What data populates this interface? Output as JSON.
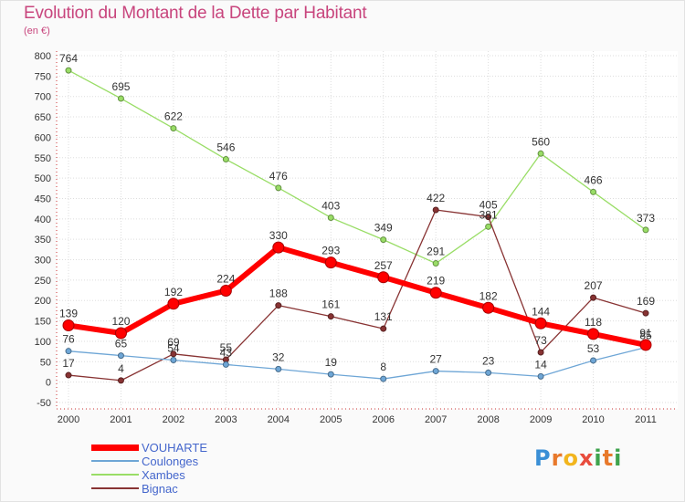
{
  "title": "Evolution du Montant de la Dette par Habitant",
  "unit_label": "(en €)",
  "brand": {
    "letters": [
      "P",
      "r",
      "o",
      "x",
      "i",
      "t",
      "i"
    ],
    "colors": [
      "#3a8fd6",
      "#e8792b",
      "#f2b51d",
      "#e84c3d",
      "#3fa34d",
      "#e8792b",
      "#3fa34d"
    ]
  },
  "chart_data": {
    "type": "line",
    "x": [
      "2000",
      "2001",
      "2002",
      "2003",
      "2004",
      "2005",
      "2006",
      "2007",
      "2008",
      "2009",
      "2010",
      "2011"
    ],
    "ylim": [
      -50,
      800
    ],
    "yticks": [
      -50,
      0,
      50,
      100,
      150,
      200,
      250,
      300,
      350,
      400,
      450,
      500,
      550,
      600,
      650,
      700,
      750,
      800
    ],
    "grid": true,
    "legend_position": "bottom-left",
    "series": [
      {
        "name": "VOUHARTE",
        "color": "#ff0000",
        "values": [
          139,
          120,
          192,
          224,
          330,
          293,
          257,
          219,
          182,
          144,
          118,
          91
        ]
      },
      {
        "name": "Coulonges",
        "color": "#6ea6d6",
        "values": [
          76,
          65,
          54,
          43,
          32,
          19,
          8,
          27,
          23,
          14,
          53,
          85
        ]
      },
      {
        "name": "Xambes",
        "color": "#99dd66",
        "values": [
          764,
          695,
          622,
          546,
          476,
          403,
          349,
          291,
          381,
          560,
          466,
          373
        ]
      },
      {
        "name": "Bignac",
        "color": "#883333",
        "values": [
          17,
          4,
          69,
          55,
          188,
          161,
          131,
          422,
          405,
          73,
          207,
          169
        ]
      }
    ]
  }
}
